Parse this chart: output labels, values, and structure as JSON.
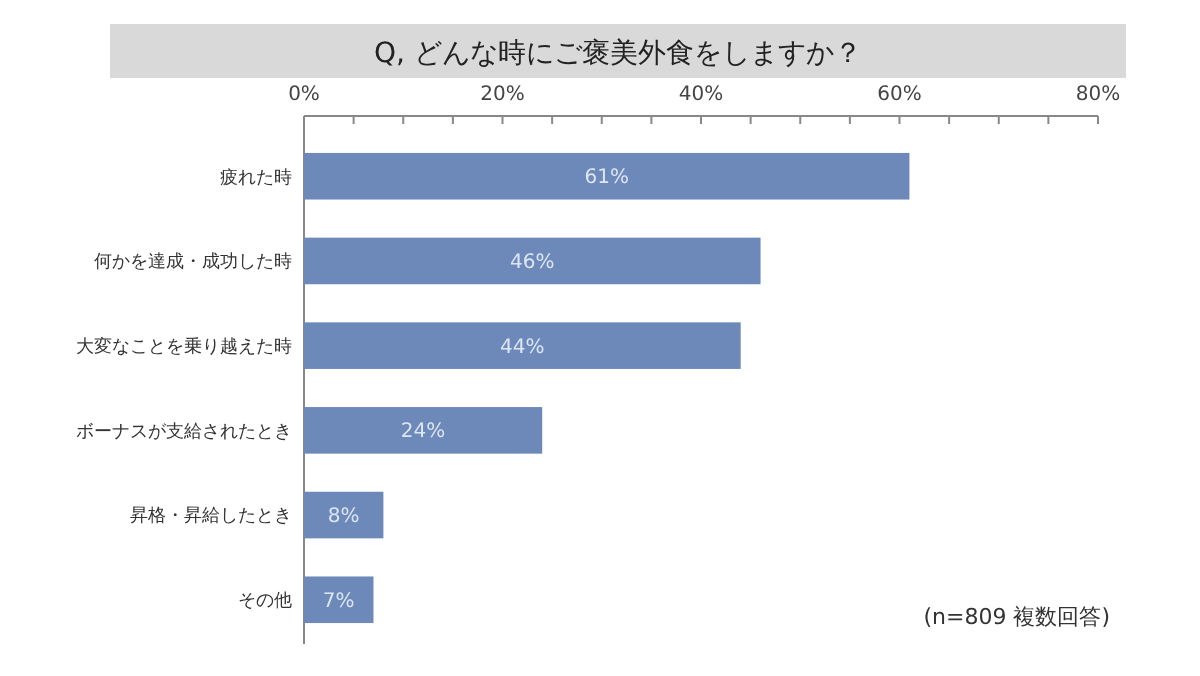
{
  "chart_data": {
    "type": "bar",
    "orientation": "horizontal",
    "title": "Q, どんな時にご褒美外食をしますか？",
    "categories": [
      "疲れた時",
      "何かを達成・成功した時",
      "大変なことを乗り越えた時",
      "ボーナスが支給されたとき",
      "昇格・昇給したとき",
      "その他"
    ],
    "values": [
      61,
      46,
      44,
      24,
      8,
      7
    ],
    "value_labels": [
      "61%",
      "46%",
      "44%",
      "24%",
      "8%",
      "7%"
    ],
    "color": "#6d89ba",
    "xlim": [
      0,
      80
    ],
    "xticks": [
      {
        "value": 0,
        "label": "0%"
      },
      {
        "value": 5,
        "label": null
      },
      {
        "value": 10,
        "label": null
      },
      {
        "value": 15,
        "label": null
      },
      {
        "value": 20,
        "label": "20%"
      },
      {
        "value": 25,
        "label": null
      },
      {
        "value": 30,
        "label": null
      },
      {
        "value": 35,
        "label": null
      },
      {
        "value": 40,
        "label": "40%"
      },
      {
        "value": 45,
        "label": null
      },
      {
        "value": 50,
        "label": null
      },
      {
        "value": 55,
        "label": null
      },
      {
        "value": 60,
        "label": "60%"
      },
      {
        "value": 65,
        "label": null
      },
      {
        "value": 70,
        "label": null
      },
      {
        "value": 75,
        "label": null
      },
      {
        "value": 80,
        "label": "80%"
      }
    ],
    "annotations": [
      "(n=809 複数回答)"
    ]
  }
}
